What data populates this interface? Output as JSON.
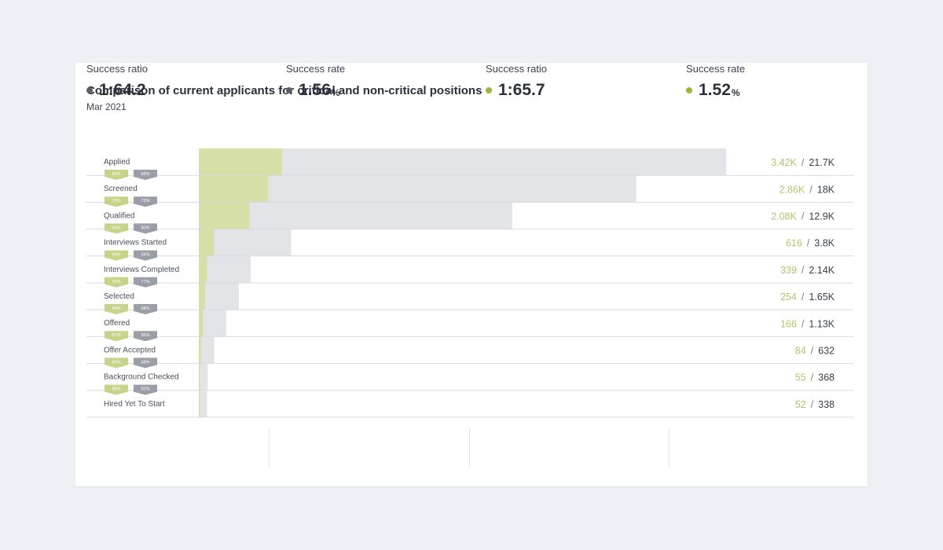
{
  "header": {
    "title": "Comparison of current applicants for critical and non-critical positions",
    "subtitle": "Mar 2021"
  },
  "colors": {
    "critical": "#d6e0a6",
    "critical_text": "#b4c46a",
    "total": "#e2e4e8",
    "badge_critical": "#c6d48a",
    "badge_total": "#9a9ea6",
    "dot_total": "#5b5f68",
    "dot_critical": "#9fb43c"
  },
  "chart_data": {
    "type": "bar",
    "orientation": "horizontal-funnel",
    "categories": [
      "Applied",
      "Screened",
      "Qualified",
      "Interviews Started",
      "Interviews Completed",
      "Selected",
      "Offered",
      "Offer Accepted",
      "Background Checked",
      "Hired Yet To Start"
    ],
    "series": [
      {
        "values": [
          3420,
          2860,
          2080,
          616,
          339,
          254,
          166,
          84,
          55,
          52
        ],
        "labels": [
          "3.42K",
          "2.86K",
          "2.08K",
          "616",
          "339",
          "254",
          "166",
          "84",
          "55",
          "52"
        ]
      },
      {
        "values": [
          21700,
          18000,
          12900,
          3800,
          2140,
          1650,
          1130,
          632,
          368,
          338
        ],
        "labels": [
          "21.7K",
          "18K",
          "12.9K",
          "3.8K",
          "2.14K",
          "1.65K",
          "1.13K",
          "632",
          "368",
          "338"
        ]
      }
    ],
    "conversion_badges": [
      [
        "84%",
        "83%"
      ],
      [
        "73%",
        "72%"
      ],
      [
        "30%",
        "30%"
      ],
      [
        "55%",
        "56%"
      ],
      [
        "75%",
        "77%"
      ],
      [
        "65%",
        "68%"
      ],
      [
        "51%",
        "56%"
      ],
      [
        "65%",
        "58%"
      ],
      [
        "95%",
        "92%"
      ]
    ],
    "separator": "/",
    "xlim": [
      0,
      21700
    ],
    "grid": false,
    "legend": "none"
  },
  "stats": [
    {
      "label": "Success ratio",
      "value": "1:64.2",
      "unit": "",
      "dot": "total"
    },
    {
      "label": "Success rate",
      "value": "1.56",
      "unit": "%",
      "dot": "total"
    },
    {
      "label": "Success ratio",
      "value": "1:65.7",
      "unit": "",
      "dot": "critical"
    },
    {
      "label": "Success rate",
      "value": "1.52",
      "unit": "%",
      "dot": "critical"
    }
  ]
}
